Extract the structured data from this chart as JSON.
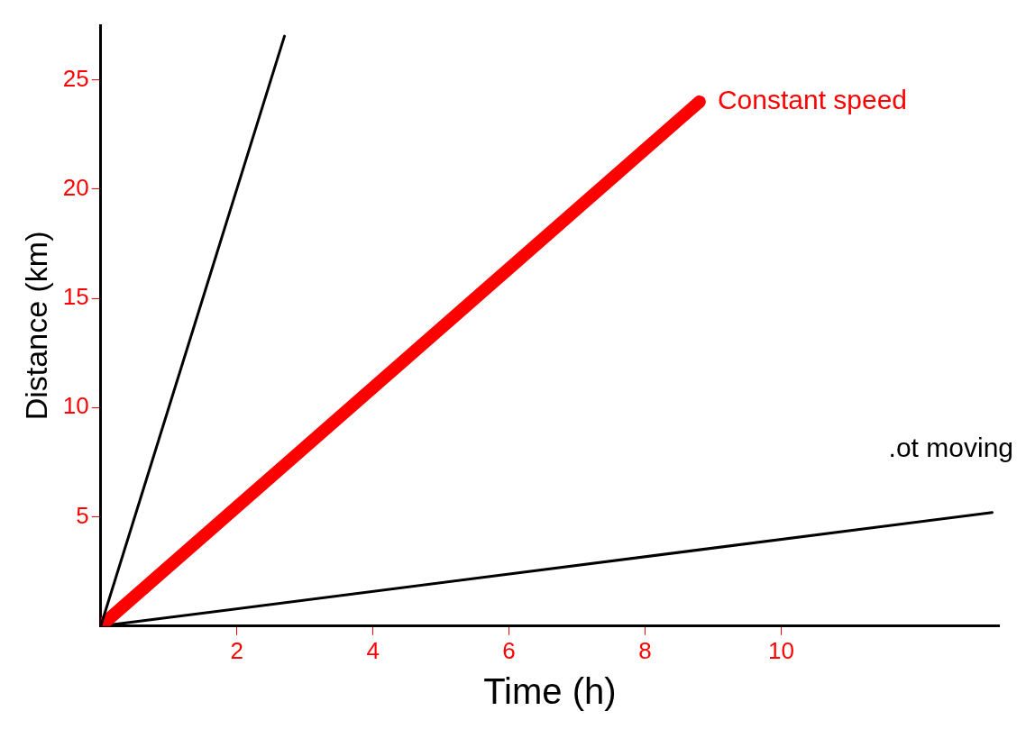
{
  "chart_data": {
    "type": "line",
    "xlabel": "Time (h)",
    "ylabel": "Distance (km)",
    "xlim": [
      0,
      13.2
    ],
    "ylim": [
      0,
      27.5
    ],
    "xticks": [
      2,
      4,
      6,
      8,
      10
    ],
    "yticks": [
      5,
      10,
      15,
      20,
      25
    ],
    "grid": false,
    "legend": false,
    "marker": "none",
    "line_style": "solid",
    "series": [
      {
        "color": "#000000",
        "x": [
          0,
          2.7
        ],
        "values": [
          0,
          27
        ]
      },
      {
        "name": "Constant speed",
        "color": "#ff0000",
        "x": [
          0,
          8.8
        ],
        "values": [
          0,
          24
        ]
      },
      {
        "name": ".ot moving",
        "color": "#000000",
        "x": [
          0,
          13.1
        ],
        "values": [
          0,
          5.2
        ]
      }
    ]
  }
}
